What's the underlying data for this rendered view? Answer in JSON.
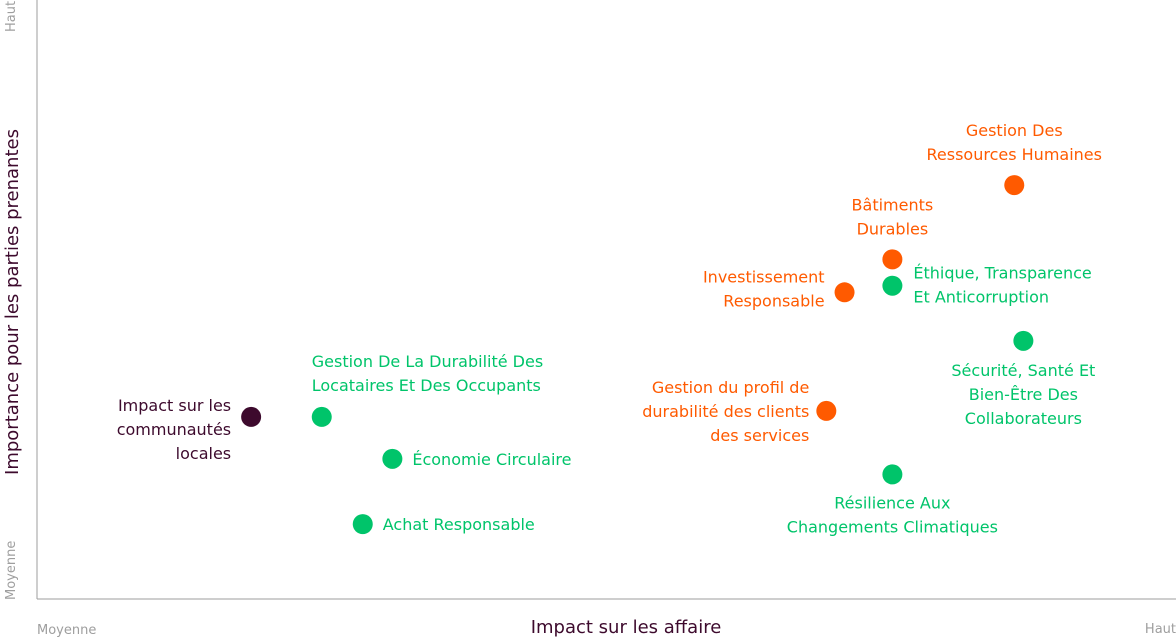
{
  "chart_data": {
    "type": "scatter",
    "xlabel": "Impact sur les affaire",
    "ylabel": "Importance pour les parties prenantes",
    "x_ticks": {
      "low": "Moyenne",
      "high": "Haut"
    },
    "y_ticks": {
      "low": "Moyenne",
      "high": "Haut"
    },
    "xlim": [
      0,
      100
    ],
    "ylim": [
      0,
      100
    ],
    "grid": false,
    "legend": "none",
    "colors": {
      "green": "#00c46a",
      "orange": "#ff5a00",
      "purple": "#3d0a2d",
      "axis": "#9e9e9e"
    },
    "points": [
      {
        "label": [
          "Impact sur les",
          "communautés",
          "locales"
        ],
        "x": 18.8,
        "y": 30.4,
        "color": "purple"
      },
      {
        "label": [
          "Gestion De La Durabilité Des",
          "Locataires Et Des Occupants"
        ],
        "x": 25.0,
        "y": 30.4,
        "color": "green"
      },
      {
        "label": [
          "Économie Circulaire"
        ],
        "x": 31.2,
        "y": 23.4,
        "color": "green"
      },
      {
        "label": [
          "Achat Responsable"
        ],
        "x": 28.6,
        "y": 12.5,
        "color": "green"
      },
      {
        "label": [
          "Gestion du profil de",
          "durabilité des clients",
          "des services"
        ],
        "x": 69.3,
        "y": 31.4,
        "color": "orange"
      },
      {
        "label": [
          "Investissement",
          "Responsable"
        ],
        "x": 70.9,
        "y": 51.2,
        "color": "orange"
      },
      {
        "label": [
          "Bâtiments",
          "Durables"
        ],
        "x": 75.1,
        "y": 56.7,
        "color": "orange"
      },
      {
        "label": [
          "Éthique, Transparence",
          "Et Anticorruption"
        ],
        "x": 75.1,
        "y": 52.3,
        "color": "green"
      },
      {
        "label": [
          "Gestion Des",
          "Ressources Humaines"
        ],
        "x": 85.8,
        "y": 69.1,
        "color": "orange"
      },
      {
        "label": [
          "Sécurité, Santé Et",
          "Bien-Être Des",
          "Collaborateurs"
        ],
        "x": 86.6,
        "y": 43.1,
        "color": "green"
      },
      {
        "label": [
          "Résilience Aux",
          "Changements Climatiques"
        ],
        "x": 75.1,
        "y": 20.8,
        "color": "green"
      }
    ]
  }
}
